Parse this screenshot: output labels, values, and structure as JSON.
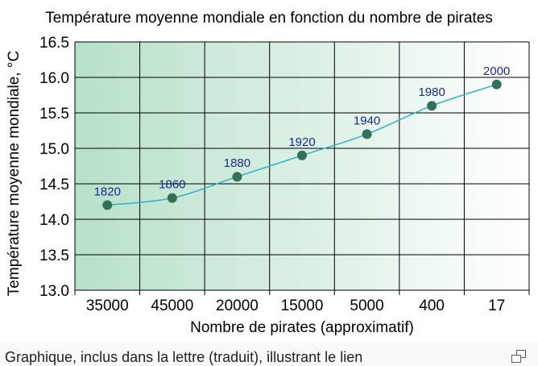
{
  "chart_data": {
    "type": "line",
    "title": "Température moyenne mondiale en fonction du nombre de pirates",
    "xlabel": "Nombre de pirates (approximatif)",
    "ylabel": "Température moyenne mondiale, °C",
    "categories": [
      "35000",
      "45000",
      "20000",
      "15000",
      "5000",
      "400",
      "17"
    ],
    "series": [
      {
        "values": [
          14.2,
          14.3,
          14.6,
          14.9,
          15.2,
          15.6,
          15.9
        ],
        "point_labels": [
          "1820",
          "1860",
          "1880",
          "1920",
          "1940",
          "1980",
          "2000"
        ]
      }
    ],
    "ylim": [
      13.0,
      16.5
    ],
    "yticks": [
      "13.0",
      "13.5",
      "14.0",
      "14.5",
      "15.0",
      "15.5",
      "16.0",
      "16.5"
    ],
    "grid": true,
    "legend": "none",
    "colors": {
      "line": "#34b0c6",
      "marker": "#33705a",
      "point_label": "#1a2b8a",
      "background_left": "#b7e0c9",
      "background_right": "#ffffff",
      "grid": "#000000"
    }
  },
  "caption": {
    "text": "Graphique, inclus dans la lettre (traduit), illustrant le lien"
  },
  "enlarge_icon": "enlarge-icon"
}
